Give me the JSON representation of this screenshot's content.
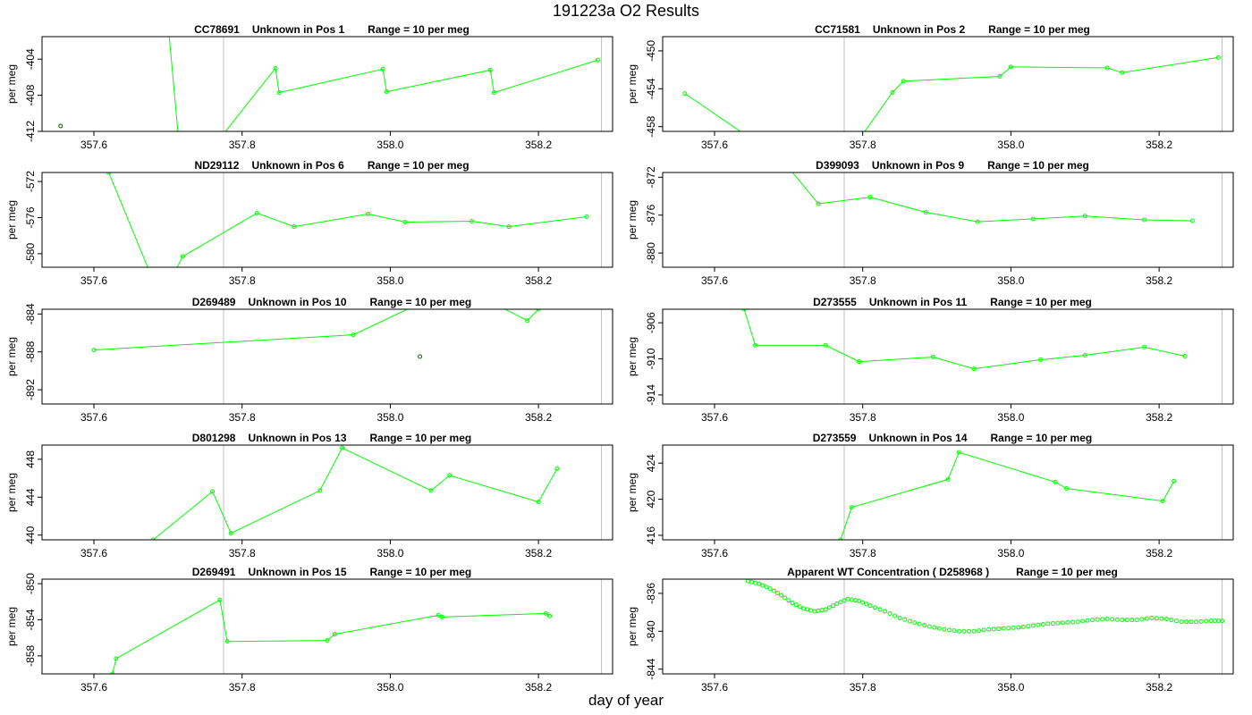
{
  "figure": {
    "title": "191223a  O2 Results",
    "xlabel": "day of year",
    "ylabel": "per meg",
    "xticks": [
      357.6,
      357.8,
      358.0,
      358.2
    ],
    "xlim": [
      357.53,
      358.3
    ],
    "marker_line_x": 357.775,
    "end_line_x": 358.285
  },
  "colors": {
    "series": "#00ff00",
    "isolated_point": "#006400",
    "frame": "#000000",
    "vline": "#c0c0c0"
  },
  "chart_data": [
    {
      "type": "line",
      "panel": "CC78691",
      "title_parts": [
        "CC78691",
        "Unknown in Pos 1",
        "Range = 10 per meg"
      ],
      "ylabel": "per meg",
      "ylim": [
        -412,
        -401.5
      ],
      "yticks": [
        -412,
        -408,
        -404
      ],
      "vlines": [
        357.775,
        358.285
      ],
      "x": [
        357.7,
        357.72,
        357.845,
        357.85,
        357.99,
        357.995,
        358.135,
        358.14,
        358.28
      ],
      "y": [
        -400,
        -418,
        -405.0,
        -407.7,
        -405.1,
        -407.6,
        -405.2,
        -407.7,
        -404.1
      ],
      "isolated": [
        {
          "x": 357.555,
          "y": -411.4
        }
      ]
    },
    {
      "type": "line",
      "panel": "CC71581",
      "title_parts": [
        "CC71581",
        "Unknown in Pos 2",
        "Range = 10 per meg"
      ],
      "ylabel": "per meg",
      "ylim": [
        -458.5,
        -448.5
      ],
      "yticks": [
        -458,
        -454,
        -450
      ],
      "vlines": [
        357.775,
        358.285
      ],
      "x": [
        357.56,
        357.7,
        357.78,
        357.84,
        357.855,
        357.985,
        358.0,
        358.13,
        358.15,
        358.28
      ],
      "y": [
        -454.5,
        -462,
        -461,
        -454.4,
        -453.2,
        -452.7,
        -451.7,
        -451.8,
        -452.3,
        -450.7
      ]
    },
    {
      "type": "line",
      "panel": "ND29112",
      "title_parts": [
        "ND29112",
        "Unknown in Pos 6",
        "Range = 10 per meg"
      ],
      "ylabel": "per meg",
      "ylim": [
        -581.5,
        -571
      ],
      "yticks": [
        -580,
        -576,
        -572
      ],
      "vlines": [
        357.775,
        358.285
      ],
      "x": [
        357.62,
        357.69,
        357.72,
        357.82,
        357.87,
        357.97,
        358.02,
        358.11,
        358.16,
        358.265
      ],
      "y": [
        -571,
        -585,
        -580.3,
        -575.5,
        -577.0,
        -575.6,
        -576.5,
        -576.4,
        -577.0,
        -575.9
      ]
    },
    {
      "type": "line",
      "panel": "D399093",
      "title_parts": [
        "D399093",
        "Unknown in Pos 9",
        "Range = 10 per meg"
      ],
      "ylabel": "per meg",
      "ylim": [
        -881.5,
        -871.5
      ],
      "yticks": [
        -880,
        -876,
        -872
      ],
      "vlines": [
        357.775,
        358.285
      ],
      "x": [
        357.7,
        357.74,
        357.81,
        357.885,
        357.955,
        358.03,
        358.1,
        358.18,
        358.245
      ],
      "y": [
        -871,
        -874.8,
        -874.1,
        -875.7,
        -876.7,
        -876.4,
        -876.1,
        -876.5,
        -876.6
      ]
    },
    {
      "type": "line",
      "panel": "D269489",
      "title_parts": [
        "D269489",
        "Unknown in Pos 10",
        "Range = 10 per meg"
      ],
      "ylabel": "per meg",
      "ylim": [
        -893.5,
        -883.5
      ],
      "yticks": [
        -892,
        -888,
        -884
      ],
      "vlines": [
        357.775,
        358.285
      ],
      "x": [
        357.6,
        357.95,
        358.05,
        358.13,
        358.185,
        358.2
      ],
      "y": [
        -887.8,
        -886.2,
        -882.5,
        -882.5,
        -884.7,
        -883.5
      ],
      "isolated": [
        {
          "x": 358.04,
          "y": -888.5
        }
      ]
    },
    {
      "type": "line",
      "panel": "D273555",
      "title_parts": [
        "D273555",
        "Unknown in Pos 11",
        "Range = 10 per meg"
      ],
      "ylabel": "per meg",
      "ylim": [
        -915,
        -904.5
      ],
      "yticks": [
        -914,
        -910,
        -906
      ],
      "vlines": [
        357.775,
        358.285
      ],
      "x": [
        357.64,
        357.655,
        357.75,
        357.795,
        357.895,
        357.95,
        358.04,
        358.1,
        358.18,
        358.235
      ],
      "y": [
        -904.5,
        -908.5,
        -908.5,
        -910.3,
        -909.8,
        -911.1,
        -910.1,
        -909.6,
        -908.7,
        -909.7
      ]
    },
    {
      "type": "line",
      "panel": "D801298",
      "title_parts": [
        "D801298",
        "Unknown in Pos 13",
        "Range = 10 per meg"
      ],
      "ylabel": "per meg",
      "ylim": [
        439.5,
        449.5
      ],
      "yticks": [
        440,
        444,
        448
      ],
      "vlines": [
        357.775,
        358.285
      ],
      "x": [
        357.68,
        357.76,
        357.785,
        357.905,
        357.935,
        358.055,
        358.08,
        358.2,
        358.225
      ],
      "y": [
        439.5,
        444.6,
        440.2,
        444.7,
        449.2,
        444.7,
        446.3,
        443.5,
        447.0
      ]
    },
    {
      "type": "line",
      "panel": "D273559",
      "title_parts": [
        "D273559",
        "Unknown in Pos 14",
        "Range = 10 per meg"
      ],
      "ylabel": "per meg",
      "ylim": [
        415.5,
        426
      ],
      "yticks": [
        416,
        420,
        424
      ],
      "vlines": [
        357.775,
        358.285
      ],
      "x": [
        357.77,
        357.785,
        357.915,
        357.93,
        358.06,
        358.075,
        358.205,
        358.22
      ],
      "y": [
        415.5,
        419.1,
        422.2,
        425.2,
        421.9,
        421.2,
        419.8,
        422.0
      ]
    },
    {
      "type": "line",
      "panel": "D269491",
      "title_parts": [
        "D269491",
        "Unknown in Pos 15",
        "Range = 10 per meg"
      ],
      "ylabel": "per meg",
      "ylim": [
        -860,
        -849.5
      ],
      "yticks": [
        -858,
        -854,
        -850
      ],
      "vlines": [
        357.775,
        358.285
      ],
      "x": [
        357.625,
        357.63,
        357.77,
        357.78,
        357.915,
        357.925,
        358.065,
        358.07,
        358.21,
        358.215
      ],
      "y": [
        -860,
        -858.3,
        -851.8,
        -856.4,
        -856.3,
        -855.6,
        -853.5,
        -853.7,
        -853.3,
        -853.6
      ]
    },
    {
      "type": "line",
      "panel": "D258968",
      "title_parts": [
        "Apparent WT Concentration ( D258968 )",
        "",
        "Range = 10 per meg"
      ],
      "ylabel": "per meg",
      "ylim": [
        -844.5,
        -834.5
      ],
      "yticks": [
        -844,
        -840,
        -836
      ],
      "vlines": [
        357.775,
        358.285
      ],
      "dense": true,
      "x": [
        357.645,
        357.66,
        357.675,
        357.69,
        357.705,
        357.72,
        357.735,
        357.75,
        357.765,
        357.78,
        357.795,
        357.81,
        357.83,
        357.85,
        357.87,
        357.89,
        357.91,
        357.93,
        357.95,
        357.97,
        357.99,
        358.01,
        358.03,
        358.05,
        358.07,
        358.09,
        358.11,
        358.13,
        358.15,
        358.17,
        358.19,
        358.21,
        358.23,
        358.25,
        358.27,
        358.285
      ],
      "y": [
        -834.7,
        -835.0,
        -835.5,
        -836.2,
        -837.0,
        -837.6,
        -837.9,
        -837.7,
        -837.1,
        -836.6,
        -836.8,
        -837.3,
        -837.9,
        -838.6,
        -839.1,
        -839.5,
        -839.8,
        -840.0,
        -840.0,
        -839.8,
        -839.7,
        -839.6,
        -839.4,
        -839.2,
        -839.1,
        -839.0,
        -838.8,
        -838.7,
        -838.8,
        -838.8,
        -838.6,
        -838.7,
        -839.0,
        -839.0,
        -838.9,
        -838.9
      ]
    }
  ]
}
